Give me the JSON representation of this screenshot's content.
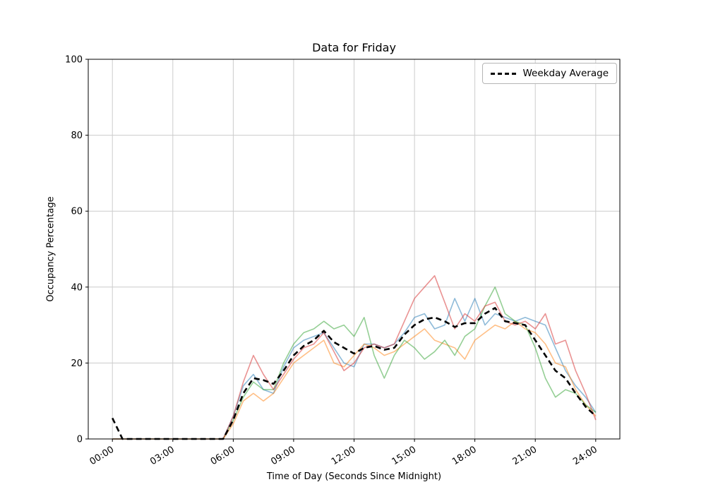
{
  "chart_data": {
    "type": "line",
    "title": "Data for Friday",
    "xlabel": "Time of Day (Seconds Since Midnight)",
    "ylabel": "Occupancy Percentage",
    "xlim": [
      -4320,
      90720
    ],
    "ylim": [
      0,
      100
    ],
    "grid": true,
    "legend": {
      "label": "Weekday Average",
      "position": "upper right"
    },
    "x_ticks": {
      "values": [
        0,
        10800,
        21600,
        32400,
        43200,
        54000,
        64800,
        75600,
        86400
      ],
      "labels": [
        "00:00",
        "03:00",
        "06:00",
        "09:00",
        "12:00",
        "15:00",
        "18:00",
        "21:00",
        "24:00"
      ]
    },
    "y_ticks": [
      0,
      20,
      40,
      60,
      80,
      100
    ],
    "style": {
      "grid_color": "#cccccc",
      "spine_color": "#000000",
      "background": "#ffffff"
    },
    "x": [
      0,
      1800,
      3600,
      5400,
      7200,
      9000,
      10800,
      12600,
      14400,
      16200,
      18000,
      19800,
      21600,
      23400,
      25200,
      27000,
      28800,
      30600,
      32400,
      34200,
      36000,
      37800,
      39600,
      41400,
      43200,
      45000,
      46800,
      48600,
      50400,
      52200,
      54000,
      55800,
      57600,
      59400,
      61200,
      63000,
      64800,
      66600,
      68400,
      70200,
      72000,
      73800,
      75600,
      77400,
      79200,
      81000,
      82800,
      84600,
      86400
    ],
    "series": [
      {
        "name": "unlabeled-blue",
        "color": "#1f77b4",
        "alpha": 0.5,
        "width": 1.6,
        "dash": "",
        "values": [
          0,
          0,
          0,
          0,
          0,
          0,
          0,
          0,
          0,
          0,
          0,
          0,
          6,
          14,
          17,
          13,
          12,
          19,
          24,
          26,
          27,
          28,
          24,
          20,
          19,
          25,
          25,
          24,
          25,
          28,
          32,
          33,
          29,
          30,
          37,
          31,
          37,
          30,
          33,
          32,
          31,
          32,
          31,
          30,
          24,
          18,
          14,
          11,
          7
        ]
      },
      {
        "name": "unlabeled-orange",
        "color": "#ff7f0e",
        "alpha": 0.5,
        "width": 1.6,
        "dash": "",
        "values": [
          0,
          0,
          0,
          0,
          0,
          0,
          0,
          0,
          0,
          0,
          0,
          0,
          4,
          10,
          12,
          10,
          12,
          16,
          20,
          22,
          24,
          26,
          20,
          19,
          22,
          25,
          24,
          22,
          23,
          25,
          27,
          29,
          26,
          25,
          24,
          21,
          26,
          28,
          30,
          29,
          31,
          29,
          28,
          25,
          20,
          19,
          13,
          9,
          6
        ]
      },
      {
        "name": "unlabeled-green",
        "color": "#2ca02c",
        "alpha": 0.5,
        "width": 1.6,
        "dash": "",
        "values": [
          0,
          0,
          0,
          0,
          0,
          0,
          0,
          0,
          0,
          0,
          0,
          0,
          5,
          11,
          15,
          13,
          13,
          20,
          25,
          28,
          29,
          31,
          29,
          30,
          27,
          32,
          22,
          16,
          22,
          26,
          24,
          21,
          23,
          26,
          22,
          27,
          29,
          35,
          40,
          33,
          31,
          30,
          24,
          16,
          11,
          13,
          12,
          9,
          7
        ]
      },
      {
        "name": "unlabeled-red",
        "color": "#d62728",
        "alpha": 0.5,
        "width": 1.6,
        "dash": "",
        "values": [
          0,
          0,
          0,
          0,
          0,
          0,
          0,
          0,
          0,
          0,
          0,
          0,
          6,
          15,
          22,
          17,
          13,
          17,
          21,
          24,
          25,
          28,
          23,
          18,
          20,
          24,
          25,
          24,
          25,
          31,
          37,
          40,
          43,
          36,
          29,
          33,
          31,
          35,
          36,
          31,
          30,
          31,
          29,
          33,
          25,
          26,
          18,
          12,
          5
        ]
      },
      {
        "name": "Weekday Average",
        "color": "#000000",
        "alpha": 1,
        "width": 2.6,
        "dash": "8 5",
        "values": [
          5.5,
          0,
          0,
          0,
          0,
          0,
          0,
          0,
          0,
          0,
          0,
          0,
          5,
          12,
          16,
          15.5,
          14.5,
          18,
          22,
          24.5,
          26,
          28.5,
          25.5,
          24,
          22.5,
          24,
          24.5,
          23.5,
          24,
          27.5,
          30,
          31.5,
          32,
          31,
          29.5,
          30.5,
          30.5,
          33,
          34.5,
          31,
          30.5,
          30,
          26,
          22,
          18,
          16,
          12,
          8.5,
          6
        ]
      }
    ]
  }
}
